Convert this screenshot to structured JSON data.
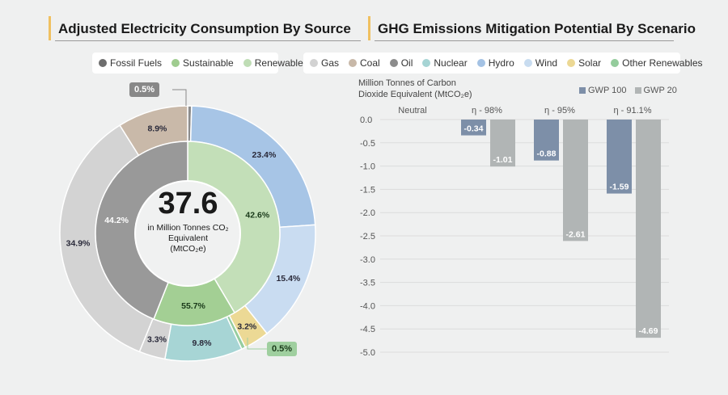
{
  "left_panel": {
    "title": "Adjusted Electricity Consumption By Source",
    "legend": [
      {
        "label": "Fossil Fuels",
        "color": "#787878"
      },
      {
        "label": "Sustainable",
        "color": "#9fcc8f"
      },
      {
        "label": "Renewable",
        "color": "#bfddb5"
      }
    ],
    "center_value": "37.6",
    "center_caption_line1": "in Million Tonnes CO₂",
    "center_caption_line2": "Equivalent",
    "center_caption_line3": "(MtCO₂e)"
  },
  "right_panel": {
    "title": "GHG Emissions Mitigation Potential By Scenario",
    "legend": [
      {
        "label": "Gas",
        "color": "#d2d2d2"
      },
      {
        "label": "Coal",
        "color": "#c8b8a8"
      },
      {
        "label": "Oil",
        "color": "#8c8c8c"
      },
      {
        "label": "Nuclear",
        "color": "#a6d4d4"
      },
      {
        "label": "Hydro",
        "color": "#a4c2e4"
      },
      {
        "label": "Wind",
        "color": "#c8dcf0"
      },
      {
        "label": "Solar",
        "color": "#ecd894"
      },
      {
        "label": "Other Renewables",
        "color": "#94cc9c"
      }
    ]
  },
  "chart_data": [
    {
      "type": "pie",
      "subtype": "nested-donut",
      "title": "Adjusted Electricity Consumption By Source",
      "total": 37.6,
      "unit": "MtCO2e",
      "inner_ring": [
        {
          "name": "Fossil Fuels",
          "value": 44.2,
          "label": "44.2%",
          "color": "#999999",
          "text_color": "#ffffff"
        },
        {
          "name": "Sustainable",
          "value": 55.7,
          "label": "55.7%",
          "color": "#a3cf94",
          "text_color": "#1a3a1a",
          "display_share": 13.2
        },
        {
          "name": "Renewable",
          "value": 42.6,
          "label": "42.6%",
          "color": "#c3dfb8",
          "text_color": "#1a3a1a"
        }
      ],
      "outer_ring": [
        {
          "name": "Oil",
          "value": 0.5,
          "label": "0.5%",
          "color": "#8c8c8c",
          "callout": true
        },
        {
          "name": "Hydro",
          "value": 23.4,
          "label": "23.4%",
          "color": "#a7c5e6"
        },
        {
          "name": "Wind",
          "value": 15.4,
          "label": "15.4%",
          "color": "#c9dcf1"
        },
        {
          "name": "Solar",
          "value": 3.2,
          "label": "3.2%",
          "color": "#ecd995"
        },
        {
          "name": "Other Renewables",
          "value": 0.5,
          "label": "0.5%",
          "color": "#96cd9f",
          "callout": true
        },
        {
          "name": "Nuclear",
          "value": 9.8,
          "label": "9.8%",
          "color": "#a7d5d5"
        },
        {
          "name": "Gas (minor)",
          "value": 3.3,
          "label": "3.3%",
          "color": "#d3d3d3"
        },
        {
          "name": "Gas",
          "value": 34.9,
          "label": "34.9%",
          "color": "#d3d3d3"
        },
        {
          "name": "Coal",
          "value": 8.9,
          "label": "8.9%",
          "color": "#c9b9a9"
        }
      ]
    },
    {
      "type": "bar",
      "title": "GHG Emissions Mitigation Potential By Scenario",
      "ylabel_line1": "Million Tonnes of Carbon",
      "ylabel_line2": "Dioxide Equivalent (MtCO₂e)",
      "categories": [
        "Neutral",
        "η - 98%",
        "η - 95%",
        "η - 91.1%"
      ],
      "series": [
        {
          "name": "GWP 100",
          "color": "#7d8fa8",
          "values": [
            0,
            -0.34,
            -0.88,
            -1.59
          ],
          "labels": [
            "",
            "-0.34",
            "-0.88",
            "-1.59"
          ]
        },
        {
          "name": "GWP 20",
          "color": "#b1b5b5",
          "values": [
            0,
            -1.01,
            -2.61,
            -4.69
          ],
          "labels": [
            "",
            "-1.01",
            "-2.61",
            "-4.69"
          ]
        }
      ],
      "ylim": [
        -5.0,
        0.0
      ],
      "yticks": [
        "0.0",
        "-0.5",
        "-1.0",
        "-1.5",
        "-2.0",
        "-2.5",
        "-3.0",
        "-3.5",
        "-4.0",
        "-4.5",
        "-5.0"
      ],
      "grid": true,
      "legend_position": "top-right"
    }
  ]
}
